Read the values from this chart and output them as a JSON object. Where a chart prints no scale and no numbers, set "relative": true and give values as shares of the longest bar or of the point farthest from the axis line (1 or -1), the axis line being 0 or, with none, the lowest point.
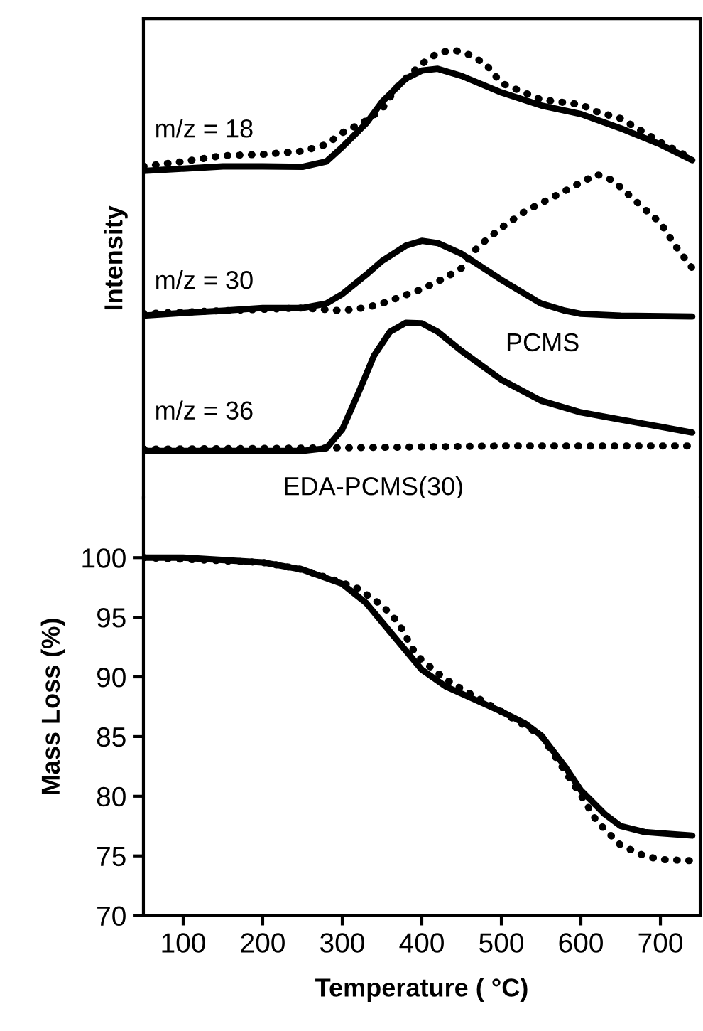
{
  "chart_data": [
    {
      "type": "line",
      "relative": true,
      "ylabel": "Intensity",
      "xlim": [
        50,
        750
      ],
      "grid": false,
      "legend": false,
      "marker": "none",
      "series": [
        {
          "color": "#000000",
          "line_style": "solid",
          "x": [
            50,
            100,
            150,
            200,
            250,
            280,
            300,
            330,
            350,
            380,
            400,
            420,
            450,
            500,
            550,
            600,
            650,
            700,
            740
          ],
          "values": [
            0.73,
            0.735,
            0.74,
            0.74,
            0.739,
            0.751,
            0.783,
            0.836,
            0.884,
            0.936,
            0.954,
            0.958,
            0.942,
            0.905,
            0.876,
            0.857,
            0.825,
            0.789,
            0.754
          ]
        },
        {
          "color": "#000000",
          "line_style": "dotted",
          "x": [
            50,
            100,
            150,
            200,
            250,
            280,
            300,
            330,
            350,
            370,
            400,
            420,
            440,
            460,
            480,
            500,
            550,
            600,
            620,
            650,
            700,
            740
          ],
          "values": [
            0.74,
            0.751,
            0.764,
            0.767,
            0.774,
            0.789,
            0.815,
            0.842,
            0.868,
            0.92,
            0.969,
            0.993,
            1.0,
            0.989,
            0.969,
            0.926,
            0.889,
            0.878,
            0.862,
            0.847,
            0.794,
            0.757
          ]
        },
        {
          "color": "#000000",
          "line_style": "solid",
          "x": [
            50,
            100,
            150,
            200,
            250,
            280,
            300,
            330,
            350,
            380,
            400,
            420,
            450,
            500,
            550,
            580,
            600,
            650,
            740
          ],
          "values": [
            0.407,
            0.413,
            0.418,
            0.424,
            0.424,
            0.434,
            0.455,
            0.498,
            0.529,
            0.563,
            0.574,
            0.569,
            0.545,
            0.487,
            0.434,
            0.418,
            0.411,
            0.407,
            0.405
          ]
        },
        {
          "color": "#000000",
          "line_style": "dotted",
          "x": [
            50,
            100,
            200,
            250,
            300,
            330,
            350,
            400,
            430,
            450,
            470,
            500,
            530,
            560,
            600,
            620,
            640,
            660,
            680,
            700,
            720,
            740
          ],
          "values": [
            0.411,
            0.415,
            0.421,
            0.424,
            0.418,
            0.425,
            0.434,
            0.466,
            0.492,
            0.513,
            0.56,
            0.603,
            0.64,
            0.667,
            0.704,
            0.722,
            0.709,
            0.677,
            0.645,
            0.614,
            0.56,
            0.513
          ]
        },
        {
          "color": "#000000",
          "line_style": "solid",
          "x": [
            50,
            250,
            280,
            300,
            320,
            340,
            360,
            380,
            400,
            420,
            450,
            500,
            550,
            600,
            650,
            700,
            740
          ],
          "values": [
            0.105,
            0.105,
            0.111,
            0.153,
            0.233,
            0.318,
            0.371,
            0.391,
            0.39,
            0.371,
            0.328,
            0.264,
            0.217,
            0.191,
            0.175,
            0.159,
            0.146
          ]
        },
        {
          "color": "#000000",
          "line_style": "dotted",
          "x": [
            50,
            300,
            500,
            740
          ],
          "values": [
            0.109,
            0.112,
            0.116,
            0.116
          ]
        }
      ],
      "annotations": [
        "m/z = 18",
        "m/z = 30",
        "m/z = 36",
        "PCMS",
        "EDA-PCMS(30)"
      ]
    },
    {
      "type": "line",
      "xlabel": "Temperature ( °C)",
      "ylabel": "Mass Loss (%)",
      "xlim": [
        50,
        750
      ],
      "ylim": [
        70,
        105
      ],
      "xticks": [
        100,
        200,
        300,
        400,
        500,
        600,
        700
      ],
      "yticks": [
        70,
        75,
        80,
        85,
        90,
        95,
        100
      ],
      "grid": false,
      "legend": false,
      "marker": "none",
      "series": [
        {
          "color": "#000000",
          "line_style": "solid",
          "x": [
            50,
            100,
            200,
            250,
            300,
            330,
            350,
            380,
            400,
            430,
            450,
            500,
            530,
            550,
            580,
            600,
            630,
            650,
            680,
            700,
            740
          ],
          "values": [
            100,
            100,
            99.6,
            99.0,
            97.8,
            96.2,
            94.6,
            92.2,
            90.6,
            89.2,
            88.6,
            87.1,
            86.1,
            85.1,
            82.5,
            80.5,
            78.5,
            77.5,
            77.0,
            76.9,
            76.7
          ]
        },
        {
          "color": "#000000",
          "line_style": "dotted",
          "x": [
            50,
            200,
            250,
            300,
            320,
            350,
            370,
            390,
            400,
            430,
            450,
            500,
            550,
            600,
            620,
            650,
            680,
            700,
            740
          ],
          "values": [
            100,
            99.6,
            99.0,
            97.9,
            97.4,
            96.0,
            94.6,
            92.2,
            91.4,
            89.8,
            89.0,
            87.1,
            85.1,
            80.1,
            77.9,
            75.9,
            75.0,
            74.7,
            74.6
          ]
        }
      ]
    }
  ]
}
